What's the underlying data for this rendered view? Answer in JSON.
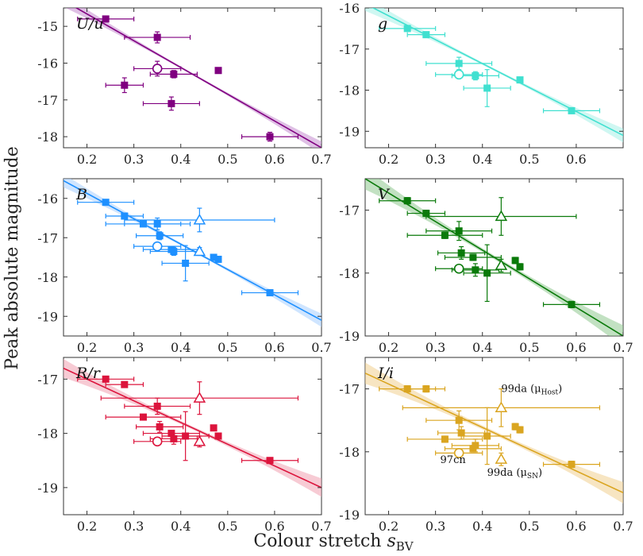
{
  "chart_data": {
    "type": "scatter",
    "xlabel": "Colour stretch",
    "xlabel_symbol": "s",
    "xlabel_sub": "BV",
    "ylabel": "Peak absolute magnitude",
    "panels": [
      {
        "label": "U/u",
        "color": "#800080",
        "band_color": "#c48cd0",
        "xlim": [
          0.15,
          0.7
        ],
        "ylim": [
          -14.5,
          -18.3
        ],
        "xticks": [
          0.2,
          0.3,
          0.4,
          0.5,
          0.6,
          0.7
        ],
        "xtick_labels": [
          "0.2",
          "0.3",
          "0.4",
          "0.5",
          "0.6",
          "0.7"
        ],
        "yticks": [
          -15,
          -16,
          -17,
          -18
        ],
        "ytick_labels": [
          "-15",
          "-16",
          "-17",
          "-18"
        ],
        "fit": {
          "x": [
            0.15,
            0.7
          ],
          "y": [
            -14.3,
            -18.3
          ]
        },
        "points": [
          {
            "x": 0.24,
            "y": -14.8,
            "xerr": 0.06,
            "yerr": 0.05,
            "marker": "square"
          },
          {
            "x": 0.28,
            "y": -16.6,
            "xerr": 0.04,
            "yerr": 0.2,
            "marker": "square"
          },
          {
            "x": 0.35,
            "y": -15.3,
            "xerr": 0.07,
            "yerr": 0.15,
            "marker": "square"
          },
          {
            "x": 0.38,
            "y": -17.1,
            "xerr": 0.06,
            "yerr": 0.18,
            "marker": "square"
          },
          {
            "x": 0.385,
            "y": -16.3,
            "xerr": 0.05,
            "yerr": 0.1,
            "marker": "square"
          },
          {
            "x": 0.48,
            "y": -16.2,
            "xerr": 0.005,
            "yerr": 0.05,
            "marker": "square"
          },
          {
            "x": 0.59,
            "y": -18.0,
            "xerr": 0.06,
            "yerr": 0.12,
            "marker": "square"
          },
          {
            "x": 0.35,
            "y": -16.15,
            "xerr": 0.05,
            "yerr": 0.2,
            "marker": "open-circle"
          }
        ]
      },
      {
        "label": "g",
        "color": "#40e0d0",
        "band_color": "#a8f0e8",
        "xlim": [
          0.15,
          0.7
        ],
        "ylim": [
          -16.0,
          -19.4
        ],
        "xticks": [
          0.2,
          0.3,
          0.4,
          0.5,
          0.6
        ],
        "xtick_labels": [
          "0.2",
          "0.3",
          "0.4",
          "0.5",
          "0.6"
        ],
        "yticks": [
          -16,
          -17,
          -18,
          -19
        ],
        "ytick_labels": [
          "-16",
          "-17",
          "-18",
          "-19"
        ],
        "fit": {
          "x": [
            0.15,
            0.7
          ],
          "y": [
            -15.9,
            -19.1
          ]
        },
        "points": [
          {
            "x": 0.24,
            "y": -16.5,
            "xerr": 0.06,
            "yerr": 0.05,
            "marker": "square"
          },
          {
            "x": 0.28,
            "y": -16.65,
            "xerr": 0.04,
            "yerr": 0.05,
            "marker": "square"
          },
          {
            "x": 0.35,
            "y": -17.35,
            "xerr": 0.07,
            "yerr": 0.15,
            "marker": "square"
          },
          {
            "x": 0.385,
            "y": -17.65,
            "xerr": 0.05,
            "yerr": 0.1,
            "marker": "square"
          },
          {
            "x": 0.41,
            "y": -17.95,
            "xerr": 0.05,
            "yerr": 0.45,
            "marker": "square"
          },
          {
            "x": 0.48,
            "y": -17.75,
            "xerr": 0.005,
            "yerr": 0.05,
            "marker": "square"
          },
          {
            "x": 0.59,
            "y": -18.5,
            "xerr": 0.06,
            "yerr": 0.05,
            "marker": "square"
          },
          {
            "x": 0.35,
            "y": -17.62,
            "xerr": 0.05,
            "yerr": 0.05,
            "marker": "open-circle"
          }
        ]
      },
      {
        "label": "B",
        "color": "#1e90ff",
        "band_color": "#a8d0ff",
        "xlim": [
          0.15,
          0.7
        ],
        "ylim": [
          -15.5,
          -19.5
        ],
        "xticks": [
          0.2,
          0.3,
          0.4,
          0.5,
          0.6,
          0.7
        ],
        "xtick_labels": [
          "0.2",
          "0.3",
          "0.4",
          "0.5",
          "0.6",
          "0.7"
        ],
        "yticks": [
          -16,
          -17,
          -18,
          -19
        ],
        "ytick_labels": [
          "-16",
          "-17",
          "-18",
          "-19"
        ],
        "fit": {
          "x": [
            0.15,
            0.7
          ],
          "y": [
            -15.55,
            -19.1
          ]
        },
        "points": [
          {
            "x": 0.24,
            "y": -16.1,
            "xerr": 0.06,
            "yerr": 0.05,
            "marker": "square"
          },
          {
            "x": 0.28,
            "y": -16.45,
            "xerr": 0.04,
            "yerr": 0.05,
            "marker": "square"
          },
          {
            "x": 0.32,
            "y": -16.65,
            "xerr": 0.08,
            "yerr": 0.05,
            "marker": "square"
          },
          {
            "x": 0.35,
            "y": -16.65,
            "xerr": 0.07,
            "yerr": 0.15,
            "marker": "square"
          },
          {
            "x": 0.355,
            "y": -16.95,
            "xerr": 0.05,
            "yerr": 0.1,
            "marker": "square"
          },
          {
            "x": 0.38,
            "y": -17.3,
            "xerr": 0.06,
            "yerr": 0.05,
            "marker": "square"
          },
          {
            "x": 0.385,
            "y": -17.35,
            "xerr": 0.05,
            "yerr": 0.1,
            "marker": "square"
          },
          {
            "x": 0.41,
            "y": -17.65,
            "xerr": 0.05,
            "yerr": 0.45,
            "marker": "square"
          },
          {
            "x": 0.47,
            "y": -17.5,
            "xerr": 0.005,
            "yerr": 0.05,
            "marker": "square"
          },
          {
            "x": 0.48,
            "y": -17.55,
            "xerr": 0.005,
            "yerr": 0.05,
            "marker": "square"
          },
          {
            "x": 0.59,
            "y": -18.4,
            "xerr": 0.06,
            "yerr": 0.05,
            "marker": "square"
          },
          {
            "x": 0.35,
            "y": -17.22,
            "xerr": 0.05,
            "yerr": 0.05,
            "marker": "open-circle"
          },
          {
            "x": 0.44,
            "y": -17.35,
            "xerr": 0.0,
            "yerr": 0.1,
            "marker": "open-triangle"
          },
          {
            "x": 0.44,
            "y": -16.55,
            "xerr": 0.16,
            "yerr": 0.3,
            "marker": "open-triangle"
          }
        ]
      },
      {
        "label": "V",
        "color": "#0a7a0a",
        "band_color": "#8fc88f",
        "xlim": [
          0.15,
          0.7
        ],
        "ylim": [
          -16.5,
          -19.0
        ],
        "xticks": [
          0.2,
          0.3,
          0.4,
          0.5,
          0.6,
          0.7
        ],
        "xtick_labels": [
          "0.2",
          "0.3",
          "0.4",
          "0.5",
          "0.6",
          "0.7"
        ],
        "yticks": [
          -17,
          -18,
          -19
        ],
        "ytick_labels": [
          "-17",
          "-18",
          "-19"
        ],
        "fit": {
          "x": [
            0.15,
            0.7
          ],
          "y": [
            -16.5,
            -19.0
          ]
        },
        "points": [
          {
            "x": 0.24,
            "y": -16.85,
            "xerr": 0.06,
            "yerr": 0.05,
            "marker": "square"
          },
          {
            "x": 0.28,
            "y": -17.05,
            "xerr": 0.04,
            "yerr": 0.05,
            "marker": "square"
          },
          {
            "x": 0.32,
            "y": -17.4,
            "xerr": 0.08,
            "yerr": 0.05,
            "marker": "square"
          },
          {
            "x": 0.35,
            "y": -17.33,
            "xerr": 0.07,
            "yerr": 0.15,
            "marker": "square"
          },
          {
            "x": 0.355,
            "y": -17.68,
            "xerr": 0.05,
            "yerr": 0.1,
            "marker": "square"
          },
          {
            "x": 0.38,
            "y": -17.75,
            "xerr": 0.06,
            "yerr": 0.05,
            "marker": "square"
          },
          {
            "x": 0.385,
            "y": -17.95,
            "xerr": 0.05,
            "yerr": 0.1,
            "marker": "square"
          },
          {
            "x": 0.41,
            "y": -18.0,
            "xerr": 0.05,
            "yerr": 0.45,
            "marker": "square"
          },
          {
            "x": 0.47,
            "y": -17.8,
            "xerr": 0.005,
            "yerr": 0.05,
            "marker": "square"
          },
          {
            "x": 0.48,
            "y": -17.9,
            "xerr": 0.005,
            "yerr": 0.05,
            "marker": "square"
          },
          {
            "x": 0.59,
            "y": -18.5,
            "xerr": 0.06,
            "yerr": 0.05,
            "marker": "square"
          },
          {
            "x": 0.35,
            "y": -17.93,
            "xerr": 0.05,
            "yerr": 0.05,
            "marker": "open-circle"
          },
          {
            "x": 0.44,
            "y": -17.88,
            "xerr": 0.0,
            "yerr": 0.1,
            "marker": "open-triangle"
          },
          {
            "x": 0.44,
            "y": -17.1,
            "xerr": 0.16,
            "yerr": 0.3,
            "marker": "open-triangle"
          }
        ]
      },
      {
        "label": "R/r",
        "color": "#dc143c",
        "band_color": "#f0a0b0",
        "xlim": [
          0.15,
          0.7
        ],
        "ylim": [
          -16.6,
          -19.5
        ],
        "xticks": [
          0.2,
          0.3,
          0.4,
          0.5,
          0.6,
          0.7
        ],
        "xtick_labels": [
          "0.2",
          "0.3",
          "0.4",
          "0.5",
          "0.6",
          "0.7"
        ],
        "yticks": [
          -17,
          -18,
          -19
        ],
        "ytick_labels": [
          "-17",
          "-18",
          "-19"
        ],
        "fit": {
          "x": [
            0.15,
            0.7
          ],
          "y": [
            -16.8,
            -19.0
          ]
        },
        "points": [
          {
            "x": 0.24,
            "y": -17.0,
            "xerr": 0.06,
            "yerr": 0.05,
            "marker": "square"
          },
          {
            "x": 0.28,
            "y": -17.1,
            "xerr": 0.04,
            "yerr": 0.05,
            "marker": "square"
          },
          {
            "x": 0.32,
            "y": -17.7,
            "xerr": 0.08,
            "yerr": 0.05,
            "marker": "square"
          },
          {
            "x": 0.35,
            "y": -17.5,
            "xerr": 0.07,
            "yerr": 0.15,
            "marker": "square"
          },
          {
            "x": 0.355,
            "y": -17.88,
            "xerr": 0.05,
            "yerr": 0.1,
            "marker": "square"
          },
          {
            "x": 0.38,
            "y": -18.0,
            "xerr": 0.06,
            "yerr": 0.05,
            "marker": "square"
          },
          {
            "x": 0.385,
            "y": -18.1,
            "xerr": 0.05,
            "yerr": 0.1,
            "marker": "square"
          },
          {
            "x": 0.41,
            "y": -18.05,
            "xerr": 0.05,
            "yerr": 0.45,
            "marker": "square"
          },
          {
            "x": 0.47,
            "y": -17.9,
            "xerr": 0.005,
            "yerr": 0.05,
            "marker": "square"
          },
          {
            "x": 0.48,
            "y": -18.05,
            "xerr": 0.005,
            "yerr": 0.05,
            "marker": "square"
          },
          {
            "x": 0.59,
            "y": -18.5,
            "xerr": 0.06,
            "yerr": 0.05,
            "marker": "square"
          },
          {
            "x": 0.35,
            "y": -18.15,
            "xerr": 0.05,
            "yerr": 0.05,
            "marker": "open-circle"
          },
          {
            "x": 0.44,
            "y": -18.15,
            "xerr": 0.0,
            "yerr": 0.1,
            "marker": "open-triangle"
          },
          {
            "x": 0.44,
            "y": -17.35,
            "xerr": 0.21,
            "yerr": 0.3,
            "marker": "open-triangle"
          }
        ]
      },
      {
        "label": "I/i",
        "color": "#daa520",
        "band_color": "#f0d090",
        "xlim": [
          0.15,
          0.7
        ],
        "ylim": [
          -16.5,
          -19.0
        ],
        "xticks": [
          0.2,
          0.3,
          0.4,
          0.5,
          0.6,
          0.7
        ],
        "xtick_labels": [
          "0.2",
          "0.3",
          "0.4",
          "0.5",
          "0.6",
          "0.7"
        ],
        "yticks": [
          -17,
          -18,
          -19
        ],
        "ytick_labels": [
          "-17",
          "-18",
          "-19"
        ],
        "fit": {
          "x": [
            0.15,
            0.7
          ],
          "y": [
            -16.75,
            -18.65
          ]
        },
        "points": [
          {
            "x": 0.24,
            "y": -17.0,
            "xerr": 0.06,
            "yerr": 0.05,
            "marker": "square"
          },
          {
            "x": 0.28,
            "y": -17.0,
            "xerr": 0.04,
            "yerr": 0.05,
            "marker": "square"
          },
          {
            "x": 0.32,
            "y": -17.8,
            "xerr": 0.08,
            "yerr": 0.05,
            "marker": "square"
          },
          {
            "x": 0.35,
            "y": -17.5,
            "xerr": 0.07,
            "yerr": 0.15,
            "marker": "square"
          },
          {
            "x": 0.355,
            "y": -17.7,
            "xerr": 0.05,
            "yerr": 0.1,
            "marker": "square"
          },
          {
            "x": 0.38,
            "y": -17.95,
            "xerr": 0.06,
            "yerr": 0.05,
            "marker": "square"
          },
          {
            "x": 0.385,
            "y": -17.9,
            "xerr": 0.05,
            "yerr": 0.1,
            "marker": "square"
          },
          {
            "x": 0.41,
            "y": -17.75,
            "xerr": 0.05,
            "yerr": 0.45,
            "marker": "square"
          },
          {
            "x": 0.47,
            "y": -17.6,
            "xerr": 0.005,
            "yerr": 0.05,
            "marker": "square"
          },
          {
            "x": 0.48,
            "y": -17.65,
            "xerr": 0.005,
            "yerr": 0.05,
            "marker": "square"
          },
          {
            "x": 0.59,
            "y": -18.2,
            "xerr": 0.06,
            "yerr": 0.05,
            "marker": "square"
          },
          {
            "x": 0.35,
            "y": -18.02,
            "xerr": 0.05,
            "yerr": 0.05,
            "marker": "open-circle"
          },
          {
            "x": 0.44,
            "y": -18.12,
            "xerr": 0.0,
            "yerr": 0.1,
            "marker": "open-triangle"
          },
          {
            "x": 0.44,
            "y": -17.3,
            "xerr": 0.21,
            "yerr": 0.3,
            "marker": "open-triangle"
          }
        ],
        "annotations": [
          {
            "text": "97cn",
            "x": 0.31,
            "y": -18.18
          },
          {
            "text": "99da (μ",
            "sub": "SN",
            "tail": ")",
            "x": 0.41,
            "y": -18.38
          },
          {
            "text": "99da (μ",
            "sub": "Host",
            "tail": ")",
            "x": 0.44,
            "y": -17.05
          }
        ]
      }
    ]
  }
}
